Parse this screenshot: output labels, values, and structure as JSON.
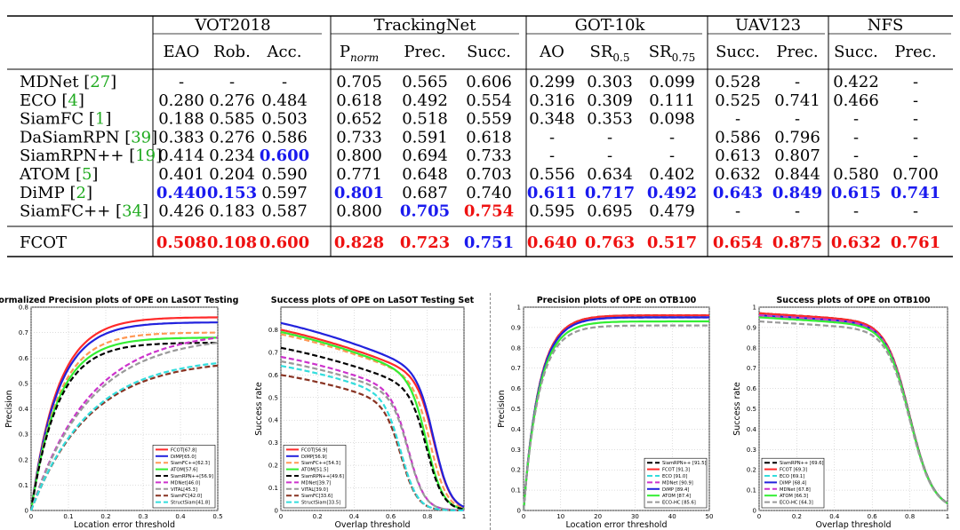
{
  "table": {
    "groups": [
      "VOT2018",
      "TrackingNet",
      "GOT-10k",
      "UAV123",
      "NFS"
    ],
    "columns": [
      {
        "t": "EAO"
      },
      {
        "t": "Rob."
      },
      {
        "t": "Acc."
      },
      {
        "t": "P",
        "sub": "norm",
        "italic": true
      },
      {
        "t": "Prec."
      },
      {
        "t": "Succ."
      },
      {
        "t": "AO"
      },
      {
        "t": "SR",
        "sub": "0.5"
      },
      {
        "t": "SR",
        "sub": "0.75"
      },
      {
        "t": "Succ."
      },
      {
        "t": "Prec."
      },
      {
        "t": "Succ."
      },
      {
        "t": "Prec."
      }
    ],
    "rows": [
      {
        "name": "MDNet",
        "ref": "27",
        "cells": [
          [
            "-",
            0
          ],
          [
            "-",
            0
          ],
          [
            "-",
            0
          ],
          [
            "0.705",
            0
          ],
          [
            "0.565",
            0
          ],
          [
            "0.606",
            0
          ],
          [
            "0.299",
            0
          ],
          [
            "0.303",
            0
          ],
          [
            "0.099",
            0
          ],
          [
            "0.528",
            0
          ],
          [
            "-",
            0
          ],
          [
            "0.422",
            0
          ],
          [
            "-",
            0
          ]
        ]
      },
      {
        "name": "ECO",
        "ref": "4",
        "cells": [
          [
            "0.280",
            0
          ],
          [
            "0.276",
            0
          ],
          [
            "0.484",
            0
          ],
          [
            "0.618",
            0
          ],
          [
            "0.492",
            0
          ],
          [
            "0.554",
            0
          ],
          [
            "0.316",
            0
          ],
          [
            "0.309",
            0
          ],
          [
            "0.111",
            0
          ],
          [
            "0.525",
            0
          ],
          [
            "0.741",
            0
          ],
          [
            "0.466",
            0
          ],
          [
            "-",
            0
          ]
        ]
      },
      {
        "name": "SiamFC",
        "ref": "1",
        "cells": [
          [
            "0.188",
            0
          ],
          [
            "0.585",
            0
          ],
          [
            "0.503",
            0
          ],
          [
            "0.652",
            0
          ],
          [
            "0.518",
            0
          ],
          [
            "0.559",
            0
          ],
          [
            "0.348",
            0
          ],
          [
            "0.353",
            0
          ],
          [
            "0.098",
            0
          ],
          [
            "-",
            0
          ],
          [
            "-",
            0
          ],
          [
            "-",
            0
          ],
          [
            "-",
            0
          ]
        ]
      },
      {
        "name": "DaSiamRPN",
        "ref": "39",
        "cells": [
          [
            "0.383",
            0
          ],
          [
            "0.276",
            0
          ],
          [
            "0.586",
            0
          ],
          [
            "0.733",
            0
          ],
          [
            "0.591",
            0
          ],
          [
            "0.618",
            0
          ],
          [
            "-",
            0
          ],
          [
            "-",
            0
          ],
          [
            "-",
            0
          ],
          [
            "0.586",
            0
          ],
          [
            "0.796",
            0
          ],
          [
            "-",
            0
          ],
          [
            "-",
            0
          ]
        ]
      },
      {
        "name": "SiamRPN++",
        "ref": "19",
        "cells": [
          [
            "0.414",
            0
          ],
          [
            "0.234",
            0
          ],
          [
            "0.600",
            2
          ],
          [
            "0.800",
            0
          ],
          [
            "0.694",
            0
          ],
          [
            "0.733",
            0
          ],
          [
            "-",
            0
          ],
          [
            "-",
            0
          ],
          [
            "-",
            0
          ],
          [
            "0.613",
            0
          ],
          [
            "0.807",
            0
          ],
          [
            "-",
            0
          ],
          [
            "-",
            0
          ]
        ]
      },
      {
        "name": "ATOM",
        "ref": "5",
        "cells": [
          [
            "0.401",
            0
          ],
          [
            "0.204",
            0
          ],
          [
            "0.590",
            0
          ],
          [
            "0.771",
            0
          ],
          [
            "0.648",
            0
          ],
          [
            "0.703",
            0
          ],
          [
            "0.556",
            0
          ],
          [
            "0.634",
            0
          ],
          [
            "0.402",
            0
          ],
          [
            "0.632",
            0
          ],
          [
            "0.844",
            0
          ],
          [
            "0.580",
            0
          ],
          [
            "0.700",
            0
          ]
        ]
      },
      {
        "name": "DiMP",
        "ref": "2",
        "cells": [
          [
            "0.440",
            2
          ],
          [
            "0.153",
            2
          ],
          [
            "0.597",
            0
          ],
          [
            "0.801",
            2
          ],
          [
            "0.687",
            0
          ],
          [
            "0.740",
            0
          ],
          [
            "0.611",
            2
          ],
          [
            "0.717",
            2
          ],
          [
            "0.492",
            2
          ],
          [
            "0.643",
            2
          ],
          [
            "0.849",
            2
          ],
          [
            "0.615",
            2
          ],
          [
            "0.741",
            2
          ]
        ]
      },
      {
        "name": "SiamFC++",
        "ref": "34",
        "cells": [
          [
            "0.426",
            0
          ],
          [
            "0.183",
            0
          ],
          [
            "0.587",
            0
          ],
          [
            "0.800",
            0
          ],
          [
            "0.705",
            2
          ],
          [
            "0.754",
            1
          ],
          [
            "0.595",
            0
          ],
          [
            "0.695",
            0
          ],
          [
            "0.479",
            0
          ],
          [
            "-",
            0
          ],
          [
            "-",
            0
          ],
          [
            "-",
            0
          ],
          [
            "-",
            0
          ]
        ]
      }
    ],
    "final_row": {
      "name": "FCOT",
      "cells": [
        [
          "0.508",
          1
        ],
        [
          "0.108",
          1
        ],
        [
          "0.600",
          1
        ],
        [
          "0.828",
          1
        ],
        [
          "0.723",
          1
        ],
        [
          "0.751",
          2
        ],
        [
          "0.640",
          1
        ],
        [
          "0.763",
          1
        ],
        [
          "0.517",
          1
        ],
        [
          "0.654",
          1
        ],
        [
          "0.875",
          1
        ],
        [
          "0.632",
          1
        ],
        [
          "0.761",
          1
        ]
      ]
    }
  },
  "colors": {
    "red": "#ee1111",
    "blue": "#1a1aee",
    "ref_box": "#22c022"
  },
  "chart_data": [
    {
      "type": "line",
      "title": "Normalized Precision plots of OPE on LaSOT Testing Set",
      "xlabel": "Location error threshold",
      "ylabel": "Precision",
      "xlim": [
        0,
        0.5
      ],
      "ylim": [
        0,
        0.8
      ],
      "xticks": [
        0,
        0.1,
        0.2,
        0.3,
        0.4,
        0.5
      ],
      "xtick_labels": [
        "0",
        "0.1",
        "0.2",
        "0.3",
        "0.4",
        "0.5"
      ],
      "yticks": [
        0,
        0.1,
        0.2,
        0.3,
        0.4,
        0.5,
        0.6,
        0.7,
        0.8
      ],
      "ytick_labels": [
        "0",
        "0.1",
        "0.2",
        "0.3",
        "0.4",
        "0.5",
        "0.6",
        "0.7",
        "0.8"
      ],
      "legend_position": "bottom-right",
      "series": [
        {
          "name": "FCOT[67.8]",
          "color": "#ff2a2a",
          "dash": "solid",
          "shape": "fast",
          "final": 0.76
        },
        {
          "name": "DiMP[65.0]",
          "color": "#2222dd",
          "dash": "solid",
          "shape": "fast",
          "final": 0.74
        },
        {
          "name": "SiamFC++[62.3]",
          "color": "#ff9955",
          "dash": "dash",
          "shape": "fast",
          "final": 0.7
        },
        {
          "name": "ATOM[57.6]",
          "color": "#33ee33",
          "dash": "solid",
          "shape": "fast",
          "final": 0.68
        },
        {
          "name": "SiamRPN++[56.9]",
          "color": "#000000",
          "dash": "dash",
          "shape": "fast",
          "final": 0.66
        },
        {
          "name": "MDNet[46.0]",
          "color": "#cc33cc",
          "dash": "dash",
          "shape": "slow",
          "final": 0.68
        },
        {
          "name": "VITAL[45.3]",
          "color": "#999999",
          "dash": "dash",
          "shape": "slow",
          "final": 0.66
        },
        {
          "name": "SiamFC[42.0]",
          "color": "#883322",
          "dash": "dash",
          "shape": "slow",
          "final": 0.57
        },
        {
          "name": "StructSiam[41.8]",
          "color": "#33dddd",
          "dash": "dash",
          "shape": "slow",
          "final": 0.58
        }
      ]
    },
    {
      "type": "line",
      "title": "Success plots of OPE on LaSOT Testing Set",
      "xlabel": "Overlap threshold",
      "ylabel": "Success rate",
      "xlim": [
        0,
        1
      ],
      "ylim": [
        0,
        0.9
      ],
      "xticks": [
        0,
        0.2,
        0.4,
        0.6,
        0.8,
        1
      ],
      "xtick_labels": [
        "0",
        "0.2",
        "0.4",
        "0.6",
        "0.8",
        "1"
      ],
      "yticks": [
        0,
        0.1,
        0.2,
        0.3,
        0.4,
        0.5,
        0.6,
        0.7,
        0.8
      ],
      "ytick_labels": [
        "0",
        "0.1",
        "0.2",
        "0.3",
        "0.4",
        "0.5",
        "0.6",
        "0.7",
        "0.8"
      ],
      "legend_position": "bottom-left",
      "series": [
        {
          "name": "FCOT[56.9]",
          "color": "#ff2a2a",
          "dash": "solid",
          "shape": "success",
          "start": 0.8,
          "knee": 0.84
        },
        {
          "name": "DiMP[56.9]",
          "color": "#2222dd",
          "dash": "solid",
          "shape": "success",
          "start": 0.83,
          "knee": 0.84
        },
        {
          "name": "SiamFC++[54.3]",
          "color": "#ff9955",
          "dash": "dash",
          "shape": "success",
          "start": 0.78,
          "knee": 0.82
        },
        {
          "name": "ATOM[51.5]",
          "color": "#33ee33",
          "dash": "solid",
          "shape": "success",
          "start": 0.79,
          "knee": 0.8
        },
        {
          "name": "SiamRPN++[49.6]",
          "color": "#000000",
          "dash": "dash",
          "shape": "success",
          "start": 0.72,
          "knee": 0.8
        },
        {
          "name": "MDNet[39.7]",
          "color": "#cc33cc",
          "dash": "dash",
          "shape": "success",
          "start": 0.68,
          "knee": 0.7
        },
        {
          "name": "VITAL[39.0]",
          "color": "#999999",
          "dash": "dash",
          "shape": "success",
          "start": 0.66,
          "knee": 0.7
        },
        {
          "name": "SiamFC[33.6]",
          "color": "#883322",
          "dash": "dash",
          "shape": "success",
          "start": 0.6,
          "knee": 0.66
        },
        {
          "name": "StructSiam[33.5]",
          "color": "#33dddd",
          "dash": "dash",
          "shape": "success",
          "start": 0.64,
          "knee": 0.66
        }
      ]
    },
    {
      "type": "line",
      "title": "Precision plots of OPE on OTB100",
      "xlabel": "Location error threshold",
      "ylabel": "Precision",
      "xlim": [
        0,
        50
      ],
      "ylim": [
        0,
        1
      ],
      "xticks": [
        0,
        10,
        20,
        30,
        40,
        50
      ],
      "xtick_labels": [
        "0",
        "10",
        "20",
        "30",
        "40",
        "50"
      ],
      "yticks": [
        0,
        0.1,
        0.2,
        0.3,
        0.4,
        0.5,
        0.6,
        0.7,
        0.8,
        0.9,
        1
      ],
      "ytick_labels": [
        "0",
        "0.1",
        "0.2",
        "0.3",
        "0.4",
        "0.5",
        "0.6",
        "0.7",
        "0.8",
        "0.9",
        "1"
      ],
      "legend_position": "bottom-right",
      "series": [
        {
          "name": "SiamRPN++ [91.5]",
          "color": "#000000",
          "dash": "dash",
          "shape": "prec",
          "final": 0.96
        },
        {
          "name": "FCOT [91.3]",
          "color": "#ff2a2a",
          "dash": "solid",
          "shape": "prec",
          "final": 0.96
        },
        {
          "name": "ECO [91.0]",
          "color": "#33dddd",
          "dash": "dash",
          "shape": "prec",
          "final": 0.95
        },
        {
          "name": "MDNet [90.9]",
          "color": "#cc33cc",
          "dash": "dash",
          "shape": "prec",
          "final": 0.95
        },
        {
          "name": "DiMP [89.4]",
          "color": "#2222dd",
          "dash": "solid",
          "shape": "prec",
          "final": 0.95
        },
        {
          "name": "ATOM [87.4]",
          "color": "#33ee33",
          "dash": "solid",
          "shape": "prec",
          "final": 0.93
        },
        {
          "name": "ECO-HC [85.6]",
          "color": "#999999",
          "dash": "dash",
          "shape": "prec",
          "final": 0.91
        }
      ]
    },
    {
      "type": "line",
      "title": "Success plots of OPE on OTB100",
      "xlabel": "Overlap threshold",
      "ylabel": "Success rate",
      "xlim": [
        0,
        1
      ],
      "ylim": [
        0,
        1
      ],
      "xticks": [
        0,
        0.2,
        0.4,
        0.6,
        0.8,
        1
      ],
      "xtick_labels": [
        "0",
        "0.2",
        "0.4",
        "0.6",
        "0.8",
        "1"
      ],
      "yticks": [
        0,
        0.1,
        0.2,
        0.3,
        0.4,
        0.5,
        0.6,
        0.7,
        0.8,
        0.9,
        1
      ],
      "ytick_labels": [
        "0",
        "0.1",
        "0.2",
        "0.3",
        "0.4",
        "0.5",
        "0.6",
        "0.7",
        "0.8",
        "0.9",
        "1"
      ],
      "legend_position": "bottom-left",
      "series": [
        {
          "name": "SiamRPN++ [69.6]",
          "color": "#000000",
          "dash": "dash",
          "shape": "otbsucc",
          "start": 0.97
        },
        {
          "name": "FCOT [69.3]",
          "color": "#ff2a2a",
          "dash": "solid",
          "shape": "otbsucc",
          "start": 0.97
        },
        {
          "name": "ECO [69.1]",
          "color": "#33dddd",
          "dash": "dash",
          "shape": "otbsucc",
          "start": 0.96
        },
        {
          "name": "DiMP [68.4]",
          "color": "#2222dd",
          "dash": "solid",
          "shape": "otbsucc",
          "start": 0.96
        },
        {
          "name": "MDNet [67.8]",
          "color": "#cc33cc",
          "dash": "dash",
          "shape": "otbsucc",
          "start": 0.96
        },
        {
          "name": "ATOM [66.3]",
          "color": "#33ee33",
          "dash": "solid",
          "shape": "otbsucc",
          "start": 0.95
        },
        {
          "name": "ECO-HC [64.3]",
          "color": "#999999",
          "dash": "dash",
          "shape": "otbsucc",
          "start": 0.93
        }
      ]
    }
  ]
}
